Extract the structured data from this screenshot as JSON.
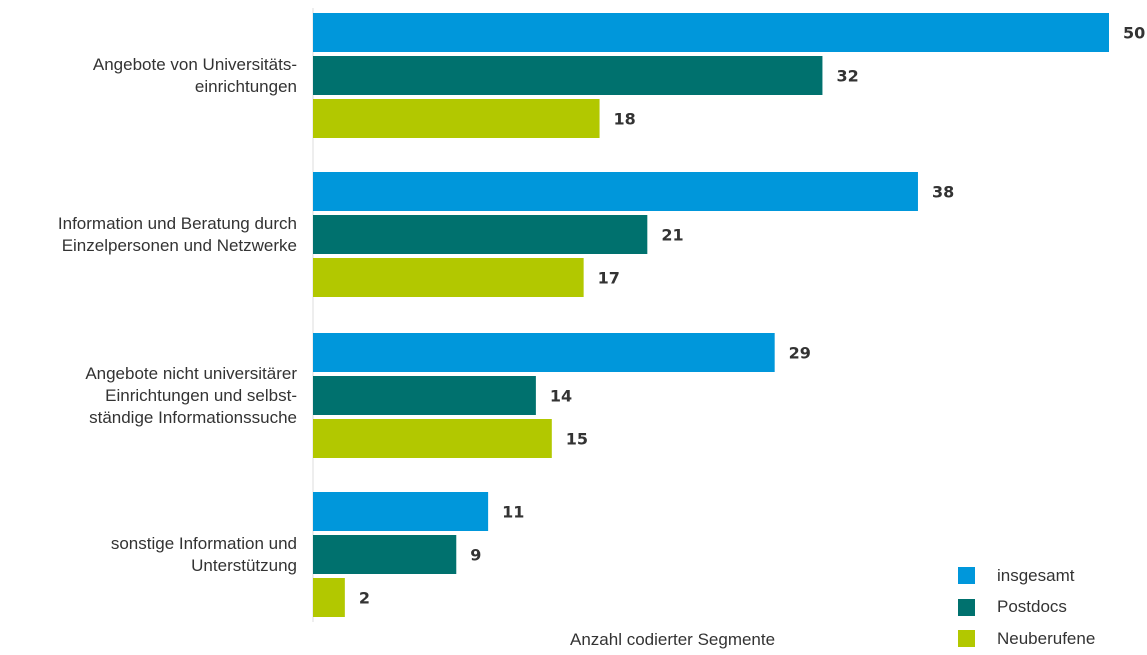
{
  "chart_data": {
    "type": "bar",
    "orientation": "horizontal",
    "categories": [
      "Angebote von Universitäts-\neinrichtungen",
      "Information und Beratung durch\nEinzelpersonen und Netzwerke",
      "Angebote nicht universitärer\nEinrichtungen und selbst-\nständige Informationssuche",
      "sonstige Information und\nUnterstützung"
    ],
    "series": [
      {
        "name": "insgesamt",
        "color": "#0097db",
        "values": [
          50,
          38,
          29,
          11
        ]
      },
      {
        "name": "Postdocs",
        "color": "#00716e",
        "values": [
          32,
          21,
          14,
          9
        ]
      },
      {
        "name": "Neuberufene",
        "color": "#b2c800",
        "values": [
          18,
          17,
          15,
          2
        ]
      }
    ],
    "xlabel": "Anzahl codierter Segmente",
    "xlim": [
      0,
      50
    ],
    "grid": false,
    "legend": "bottom-right",
    "data_labels": true
  }
}
